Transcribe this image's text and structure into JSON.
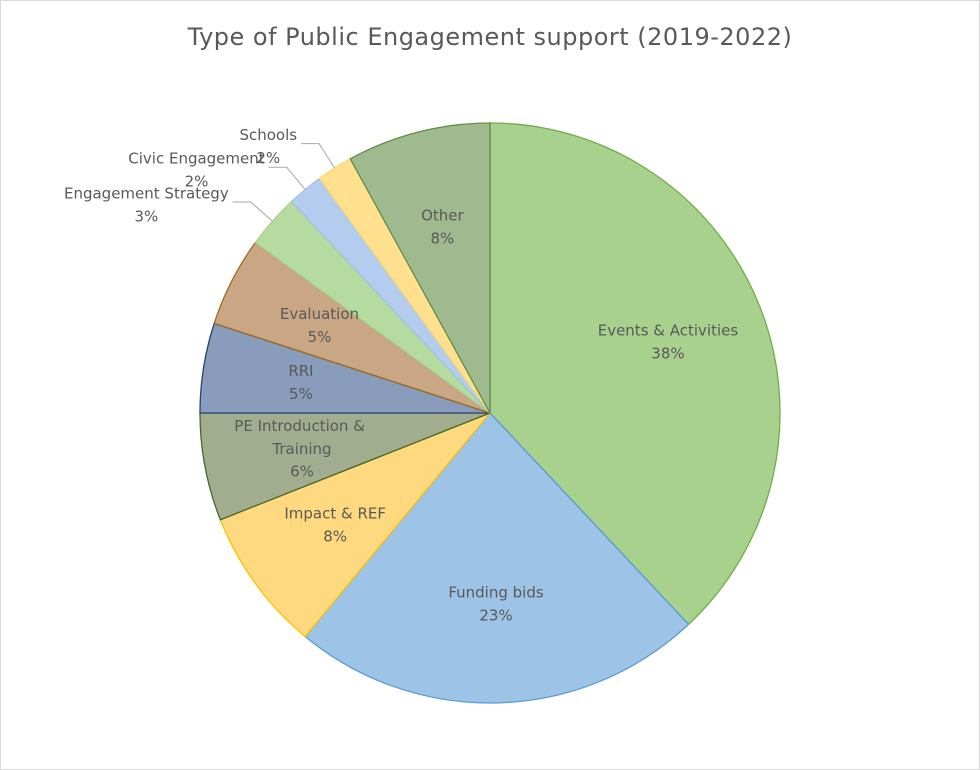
{
  "chart_data": {
    "type": "pie",
    "title": "Type of Public Engagement  support  (2019-2022)",
    "categories": [
      "Events & Activities",
      "Funding bids",
      "Impact & REF",
      "PE Introduction & Training",
      "RRI",
      "Evaluation",
      "Engagement Strategy",
      "Civic Engagement",
      "Schools",
      "Other"
    ],
    "values": [
      38,
      23,
      8,
      6,
      5,
      5,
      3,
      2,
      2,
      8
    ],
    "value_labels": [
      "38%",
      "23%",
      "8%",
      "6%",
      "5%",
      "5%",
      "3%",
      "2%",
      "2%",
      "8%"
    ],
    "colors": [
      "#a9d18e",
      "#9dc3e6",
      "#ffd97f",
      "#a2ad90",
      "#8a9cbb",
      "#c9a785",
      "#b5dba0",
      "#b4cdee",
      "#ffe08f",
      "#9fba8f"
    ],
    "border_colors": [
      "#70ad47",
      "#5b9bd5",
      "#ffc000",
      "#43682b",
      "#264478",
      "#9e6b1f",
      "#a9d18e",
      "#9dc3e6",
      "#ffd966",
      "#638c4a"
    ]
  }
}
